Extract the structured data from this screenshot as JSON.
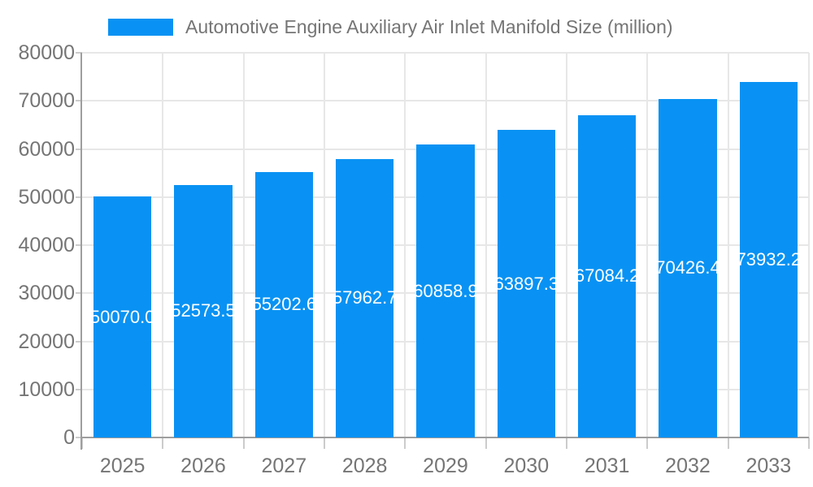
{
  "legend": {
    "label": "Automotive Engine Auxiliary Air Inlet Manifold Size (million)"
  },
  "chart_data": {
    "type": "bar",
    "title": "Automotive Engine Auxiliary Air Inlet Manifold Size (million)",
    "categories": [
      "2025",
      "2026",
      "2027",
      "2028",
      "2029",
      "2030",
      "2031",
      "2032",
      "2033"
    ],
    "values": [
      50070.0,
      52573.5,
      55202.6,
      57962.7,
      60858.9,
      63897.3,
      67084.2,
      70426.4,
      73932.2
    ],
    "value_label_decimals": 1,
    "ylim": [
      0,
      80000
    ],
    "y_tick_step": 10000,
    "y_tick_labels": [
      "0",
      "10000",
      "20000",
      "30000",
      "40000",
      "50000",
      "60000",
      "70000",
      "80000"
    ],
    "grid": true,
    "legend_position": "top",
    "bar_color": "#0992f3",
    "value_label_color": "#ffffff",
    "axis_text_color": "#757575",
    "grid_color": "#e7e7e7",
    "axis_line_color": "#9e9e9e",
    "tick_color": "#cccccc"
  }
}
